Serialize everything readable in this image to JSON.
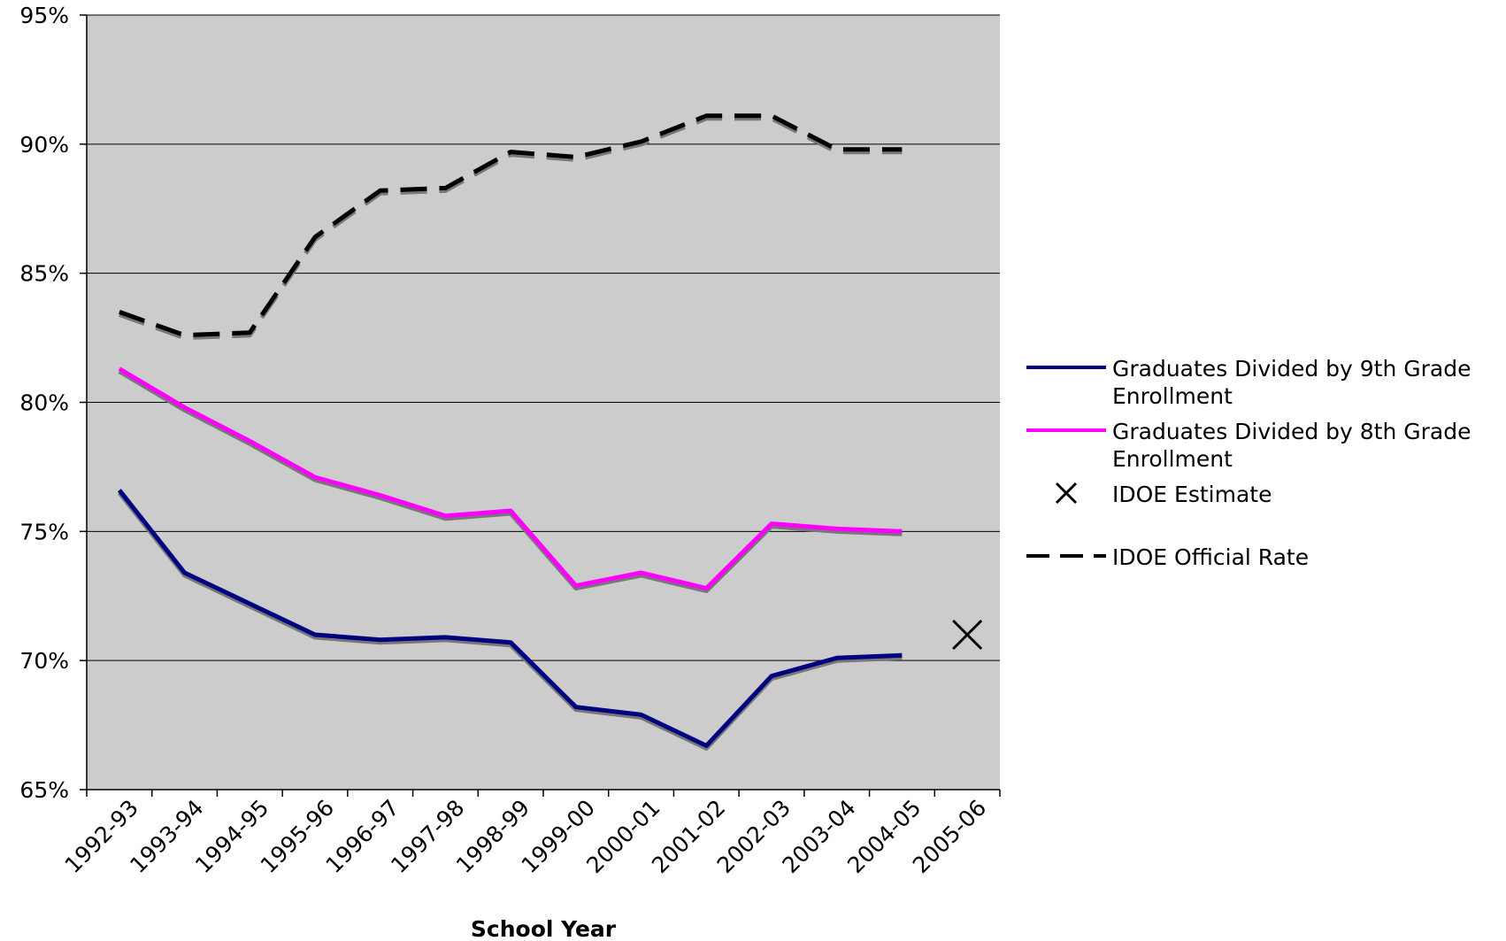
{
  "chart_data": {
    "type": "line",
    "title": "",
    "xlabel": "School Year",
    "ylabel": "",
    "ylim": [
      65,
      95
    ],
    "y_ticks": [
      "65%",
      "70%",
      "75%",
      "80%",
      "85%",
      "90%",
      "95%"
    ],
    "y_tick_values": [
      65,
      70,
      75,
      80,
      85,
      90,
      95
    ],
    "grid": true,
    "plot_background": "#cccccc",
    "legend_position": "right",
    "categories": [
      "1992-93",
      "1993-94",
      "1994-95",
      "1995-96",
      "1996-97",
      "1997-98",
      "1998-99",
      "1999-00",
      "2000-01",
      "2001-02",
      "2002-03",
      "2003-04",
      "2004-05",
      "2005-06"
    ],
    "series": [
      {
        "name": "Graduates Divided by 9th Grade Enrollment",
        "legend_lines": [
          "Graduates Divided by 9th Grade",
          "Enrollment"
        ],
        "color": "#000080",
        "style": "solid",
        "values": [
          76.6,
          73.4,
          72.2,
          71.0,
          70.8,
          70.9,
          70.7,
          68.2,
          67.9,
          66.7,
          69.4,
          70.1,
          70.2,
          null
        ]
      },
      {
        "name": "Graduates Divided by 8th Grade Enrollment",
        "legend_lines": [
          "Graduates Divided by 8th Grade",
          "Enrollment"
        ],
        "color": "#ff00ff",
        "style": "solid",
        "values": [
          81.3,
          79.8,
          78.5,
          77.1,
          76.4,
          75.6,
          75.8,
          72.9,
          73.4,
          72.8,
          75.3,
          75.1,
          75.0,
          null
        ]
      },
      {
        "name": "IDOE Estimate",
        "legend_lines": [
          "IDOE Estimate"
        ],
        "color": "#000000",
        "style": "marker-x",
        "values": [
          null,
          null,
          null,
          null,
          null,
          null,
          null,
          null,
          null,
          null,
          null,
          null,
          null,
          71.0
        ]
      },
      {
        "name": "IDOE Official Rate",
        "legend_lines": [
          "IDOE Official Rate"
        ],
        "color": "#000000",
        "style": "dashed",
        "values": [
          83.5,
          82.6,
          82.7,
          86.4,
          88.2,
          88.3,
          89.7,
          89.5,
          90.1,
          91.1,
          91.1,
          89.8,
          89.8,
          null
        ]
      }
    ]
  }
}
